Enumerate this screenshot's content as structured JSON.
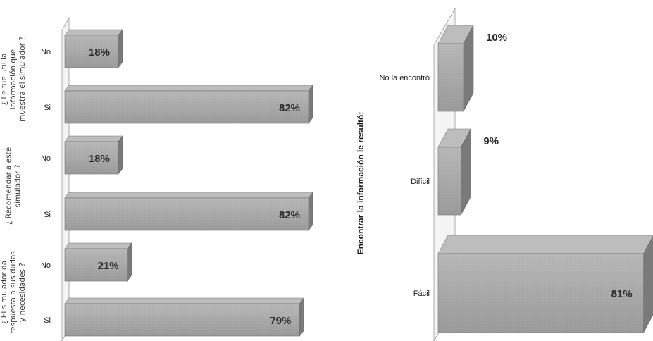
{
  "chart_data": [
    {
      "type": "bar",
      "orientation": "horizontal",
      "title": "",
      "xlim": [
        0,
        100
      ],
      "groups": [
        {
          "label_lines": [
            "¿ Le fue util la",
            "información que",
            "muestra el simulador ?"
          ],
          "categories": [
            "No",
            "Si"
          ],
          "values": [
            18,
            82
          ],
          "data_labels": [
            "18%",
            "82%"
          ]
        },
        {
          "label_lines": [
            "¿ Recomendaria este",
            "simulador ?"
          ],
          "categories": [
            "No",
            "Si"
          ],
          "values": [
            18,
            82
          ],
          "data_labels": [
            "18%",
            "82%"
          ]
        },
        {
          "label_lines": [
            "¿ El simulador da",
            "respuesta a sus dudas",
            "y necesidades ?"
          ],
          "categories": [
            "No",
            "Si"
          ],
          "values": [
            21,
            79
          ],
          "data_labels": [
            "21%",
            "79%"
          ]
        }
      ],
      "bar_color": "#a9a9a9"
    },
    {
      "type": "bar",
      "orientation": "horizontal",
      "title": "",
      "ylabel": "Encontrar la información le resultó:",
      "xlim": [
        0,
        100
      ],
      "categories": [
        "No la encontró",
        "Difícil",
        "Fácil"
      ],
      "values": [
        10,
        9,
        81
      ],
      "data_labels": [
        "10%",
        "9%",
        "81%"
      ],
      "bar_color": "#a9a9a9"
    }
  ]
}
